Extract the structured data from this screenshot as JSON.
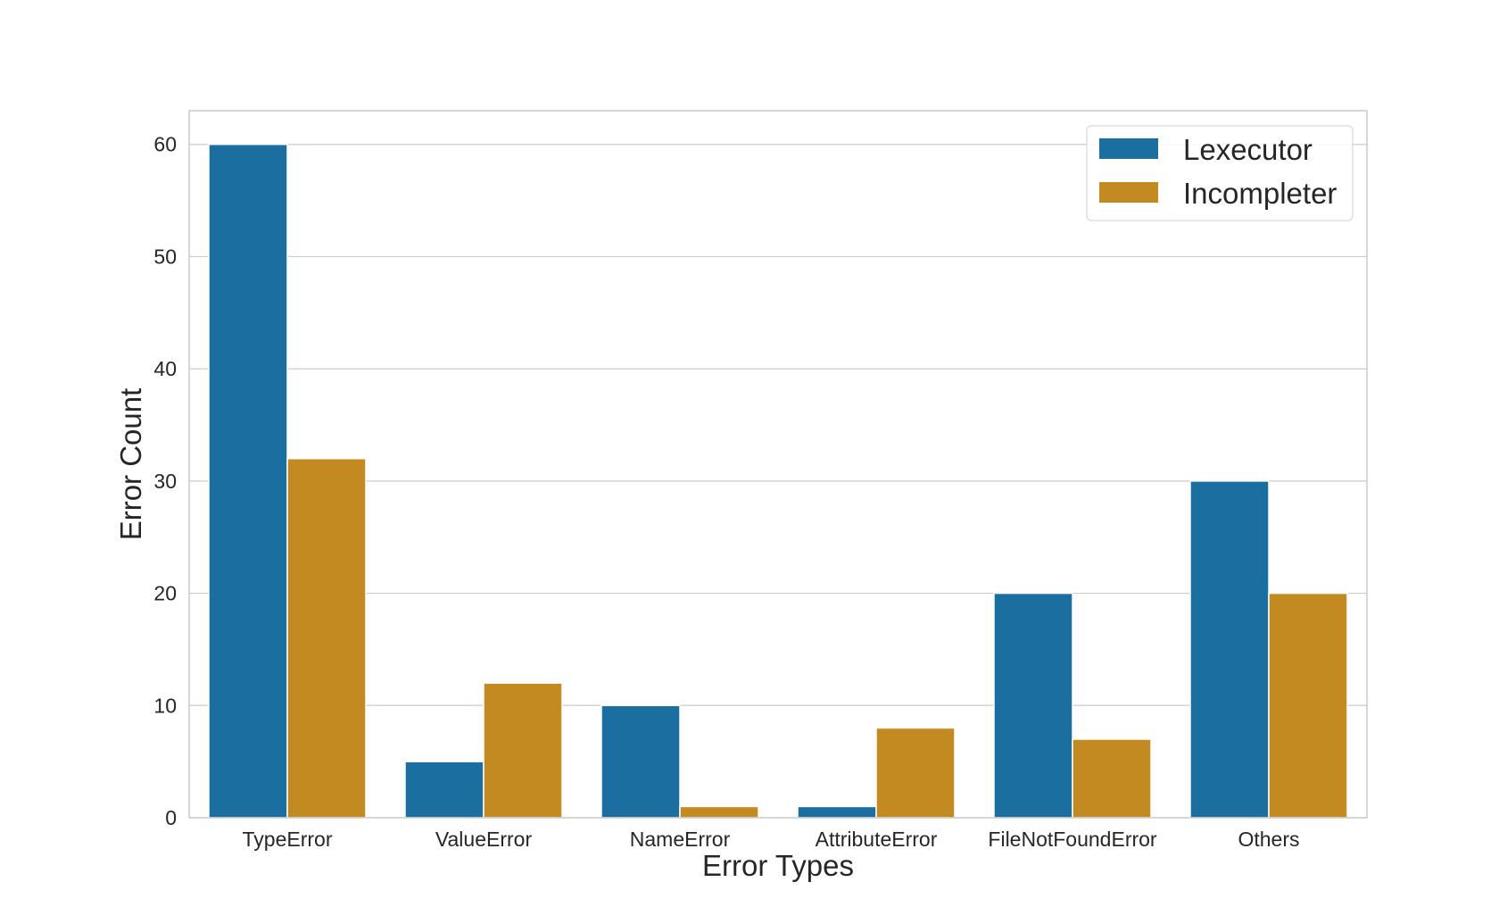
{
  "chart_data": {
    "type": "bar",
    "title": "",
    "xlabel": "Error Types",
    "ylabel": "Error Count",
    "categories": [
      "TypeError",
      "ValueError",
      "NameError",
      "AttributeError",
      "FileNotFoundError",
      "Others"
    ],
    "series": [
      {
        "name": "Lexecutor",
        "color": "#1a6fa0",
        "values": [
          60,
          5,
          10,
          1,
          20,
          30
        ]
      },
      {
        "name": "Incompleter",
        "color": "#c48a22",
        "values": [
          32,
          12,
          1,
          8,
          7,
          20
        ]
      }
    ],
    "ylim": [
      0,
      63
    ],
    "yticks": [
      0,
      10,
      20,
      30,
      40,
      50,
      60
    ],
    "grid": true,
    "legend_position": "top-right"
  }
}
